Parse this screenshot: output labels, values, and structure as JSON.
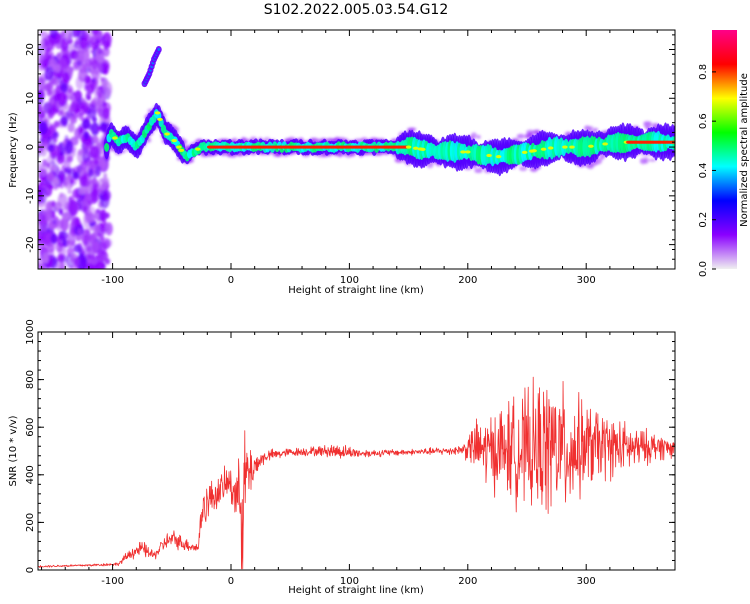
{
  "title": "S102.2022.005.03.54.G12",
  "colors": {
    "axis": "#000000",
    "snr_line": "#f03030"
  },
  "chart_data": [
    {
      "type": "heatmap",
      "xlabel": "Height of straight line (km)",
      "ylabel": "Frequency (Hz)",
      "xlim": [
        -163,
        375
      ],
      "ylim": [
        -25,
        24
      ],
      "x_ticks": [
        -100,
        0,
        100,
        200,
        300
      ],
      "y_ticks": [
        -20,
        -10,
        0,
        10,
        20
      ],
      "x_tick_labels": [
        "-100",
        "0",
        "100",
        "200",
        "300"
      ],
      "y_tick_labels": [
        "-20",
        "-10",
        "0",
        "10",
        "20"
      ],
      "colorbar": {
        "label": "Normalized spectral amplitude",
        "range": [
          0,
          0.97
        ],
        "ticks": [
          0,
          0.2,
          0.4,
          0.6,
          0.8
        ],
        "tick_labels": [
          "0.0",
          "0.2",
          "0.4",
          "0.6",
          "0.8"
        ],
        "colormap": [
          "#f0f0f0",
          "#8a00ff",
          "#0000ff",
          "#00ffff",
          "#00ff00",
          "#ffff00",
          "#ff0000",
          "#ff0088"
        ]
      },
      "ridge": [
        [
          -108,
          -3
        ],
        [
          -102,
          3
        ],
        [
          -95,
          1
        ],
        [
          -88,
          2
        ],
        [
          -80,
          0
        ],
        [
          -74,
          2
        ],
        [
          -68,
          5
        ],
        [
          -62,
          7
        ],
        [
          -56,
          3
        ],
        [
          -50,
          2
        ],
        [
          -44,
          0
        ],
        [
          -38,
          -2
        ],
        [
          -32,
          -1
        ],
        [
          -25,
          0
        ],
        [
          -20,
          0
        ],
        [
          0,
          0
        ],
        [
          100,
          0
        ],
        [
          150,
          0
        ],
        [
          175,
          -1
        ],
        [
          200,
          -1
        ],
        [
          225,
          -2
        ],
        [
          250,
          -1
        ],
        [
          275,
          0
        ],
        [
          300,
          0
        ],
        [
          325,
          1
        ],
        [
          350,
          1
        ],
        [
          375,
          1
        ]
      ],
      "branch": [
        [
          -73,
          13
        ],
        [
          -69,
          15
        ],
        [
          -65,
          18
        ],
        [
          -61,
          20
        ]
      ]
    },
    {
      "type": "line",
      "xlabel": "Height of straight line (km)",
      "ylabel": "SNR (10 * v/v)",
      "xlim": [
        -163,
        375
      ],
      "ylim": [
        0,
        1000
      ],
      "x_ticks": [
        -100,
        0,
        100,
        200,
        300
      ],
      "y_ticks": [
        0,
        200,
        400,
        600,
        800,
        1000
      ],
      "x_tick_labels": [
        "-100",
        "0",
        "100",
        "200",
        "300"
      ],
      "y_tick_labels": [
        "0",
        "200",
        "400",
        "600",
        "800",
        "1000"
      ],
      "envelope": [
        [
          -163,
          15,
          5
        ],
        [
          -120,
          20,
          6
        ],
        [
          -95,
          25,
          8
        ],
        [
          -85,
          70,
          30
        ],
        [
          -75,
          90,
          40
        ],
        [
          -65,
          60,
          25
        ],
        [
          -55,
          120,
          40
        ],
        [
          -48,
          130,
          45
        ],
        [
          -40,
          110,
          35
        ],
        [
          -33,
          100,
          30
        ],
        [
          -28,
          90,
          25
        ],
        [
          -24,
          260,
          120
        ],
        [
          -18,
          300,
          90
        ],
        [
          -10,
          330,
          80
        ],
        [
          -2,
          370,
          90
        ],
        [
          3,
          330,
          120
        ],
        [
          8,
          300,
          200
        ],
        [
          12,
          380,
          250
        ],
        [
          20,
          440,
          60
        ],
        [
          30,
          480,
          30
        ],
        [
          50,
          495,
          20
        ],
        [
          75,
          500,
          25
        ],
        [
          90,
          500,
          40
        ],
        [
          110,
          490,
          20
        ],
        [
          150,
          495,
          15
        ],
        [
          180,
          500,
          20
        ],
        [
          195,
          505,
          25
        ],
        [
          205,
          520,
          120
        ],
        [
          215,
          500,
          180
        ],
        [
          230,
          510,
          230
        ],
        [
          250,
          500,
          300
        ],
        [
          270,
          520,
          360
        ],
        [
          285,
          500,
          300
        ],
        [
          300,
          520,
          220
        ],
        [
          320,
          520,
          160
        ],
        [
          340,
          510,
          110
        ],
        [
          360,
          520,
          70
        ],
        [
          375,
          510,
          50
        ]
      ]
    }
  ]
}
